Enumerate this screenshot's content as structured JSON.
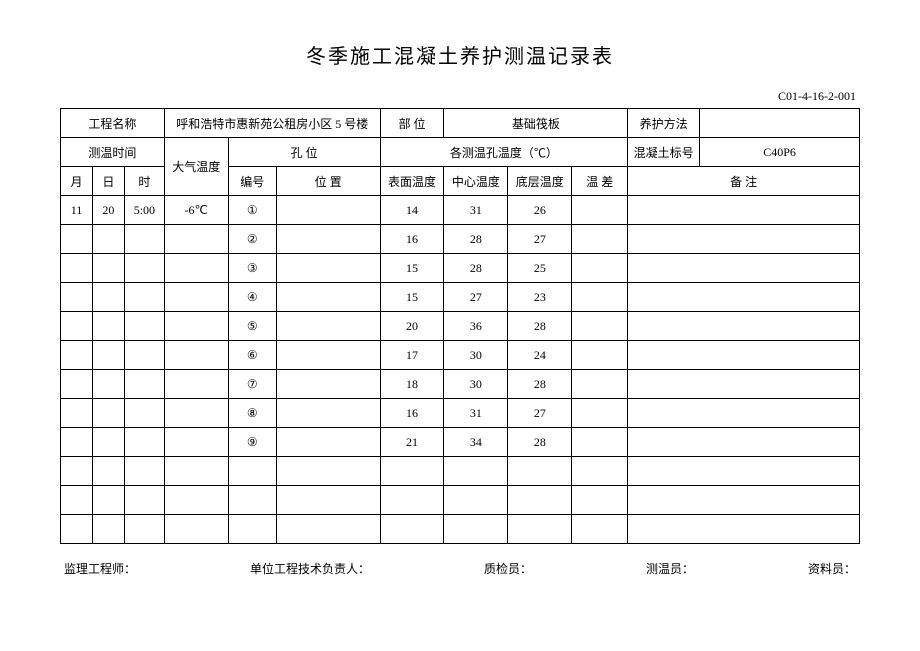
{
  "title": "冬季施工混凝土养护测温记录表",
  "doc_no": "C01-4-16-2-001",
  "header": {
    "project_name_label": "工程名称",
    "project_name_value": "呼和浩特市惠新苑公租房小区 5 号楼",
    "part_label": "部    位",
    "part_value": "基础筏板",
    "curing_method_label": "养护方法",
    "curing_method_value": "",
    "measure_time_label": "测温时间",
    "air_temp_label": "大气温度",
    "hole_pos_label": "孔        位",
    "hole_temps_label": "各测温孔温度（℃）",
    "concrete_mark_label": "混凝土标号",
    "concrete_mark_value": "C40P6",
    "month_label": "月",
    "day_label": "日",
    "hour_label": "时",
    "no_label": "编号",
    "pos_label": "位    置",
    "surface_label": "表面温度",
    "center_label": "中心温度",
    "bottom_label": "底层温度",
    "diff_label": "温  差",
    "remarks_label": "备    注"
  },
  "rows": [
    {
      "month": "11",
      "day": "20",
      "hour": "5:00",
      "air": "-6℃",
      "no": "①",
      "pos": "",
      "surface": "14",
      "center": "31",
      "bottom": "26",
      "diff": "",
      "remarks": ""
    },
    {
      "month": "",
      "day": "",
      "hour": "",
      "air": "",
      "no": "②",
      "pos": "",
      "surface": "16",
      "center": "28",
      "bottom": "27",
      "diff": "",
      "remarks": ""
    },
    {
      "month": "",
      "day": "",
      "hour": "",
      "air": "",
      "no": "③",
      "pos": "",
      "surface": "15",
      "center": "28",
      "bottom": "25",
      "diff": "",
      "remarks": ""
    },
    {
      "month": "",
      "day": "",
      "hour": "",
      "air": "",
      "no": "④",
      "pos": "",
      "surface": "15",
      "center": "27",
      "bottom": "23",
      "diff": "",
      "remarks": ""
    },
    {
      "month": "",
      "day": "",
      "hour": "",
      "air": "",
      "no": "⑤",
      "pos": "",
      "surface": "20",
      "center": "36",
      "bottom": "28",
      "diff": "",
      "remarks": ""
    },
    {
      "month": "",
      "day": "",
      "hour": "",
      "air": "",
      "no": "⑥",
      "pos": "",
      "surface": "17",
      "center": "30",
      "bottom": "24",
      "diff": "",
      "remarks": ""
    },
    {
      "month": "",
      "day": "",
      "hour": "",
      "air": "",
      "no": "⑦",
      "pos": "",
      "surface": "18",
      "center": "30",
      "bottom": "28",
      "diff": "",
      "remarks": ""
    },
    {
      "month": "",
      "day": "",
      "hour": "",
      "air": "",
      "no": "⑧",
      "pos": "",
      "surface": "16",
      "center": "31",
      "bottom": "27",
      "diff": "",
      "remarks": ""
    },
    {
      "month": "",
      "day": "",
      "hour": "",
      "air": "",
      "no": "⑨",
      "pos": "",
      "surface": "21",
      "center": "34",
      "bottom": "28",
      "diff": "",
      "remarks": ""
    },
    {
      "month": "",
      "day": "",
      "hour": "",
      "air": "",
      "no": "",
      "pos": "",
      "surface": "",
      "center": "",
      "bottom": "",
      "diff": "",
      "remarks": ""
    },
    {
      "month": "",
      "day": "",
      "hour": "",
      "air": "",
      "no": "",
      "pos": "",
      "surface": "",
      "center": "",
      "bottom": "",
      "diff": "",
      "remarks": ""
    },
    {
      "month": "",
      "day": "",
      "hour": "",
      "air": "",
      "no": "",
      "pos": "",
      "surface": "",
      "center": "",
      "bottom": "",
      "diff": "",
      "remarks": ""
    }
  ],
  "footer": {
    "supervisor": "监理工程师：",
    "tech_lead": "单位工程技术负责人：",
    "inspector": "质检员：",
    "measurer": "测温员：",
    "doc_clerk": "资料员："
  },
  "layout": {
    "col_widths_pct": [
      4,
      4,
      5,
      8,
      6,
      13,
      8,
      8,
      8,
      7,
      9,
      20
    ]
  }
}
